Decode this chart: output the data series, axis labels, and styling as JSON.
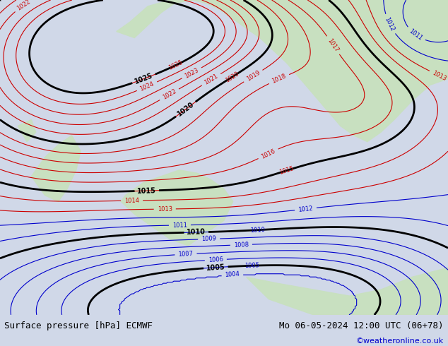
{
  "title_left": "Surface pressure [hPa] ECMWF",
  "title_right": "Mo 06-05-2024 12:00 UTC (06+78)",
  "credit": "©weatheronline.co.uk",
  "bg_color": "#d0d8e8",
  "land_color": "#c8e0c0",
  "fig_width": 6.34,
  "fig_height": 4.9,
  "dpi": 100,
  "bottom_bar_color": "#ffffff",
  "title_fontsize": 9,
  "credit_color": "#0000cc",
  "red_contour_color": "#cc0000",
  "blue_contour_color": "#0000cc",
  "black_contour_color": "#000000"
}
